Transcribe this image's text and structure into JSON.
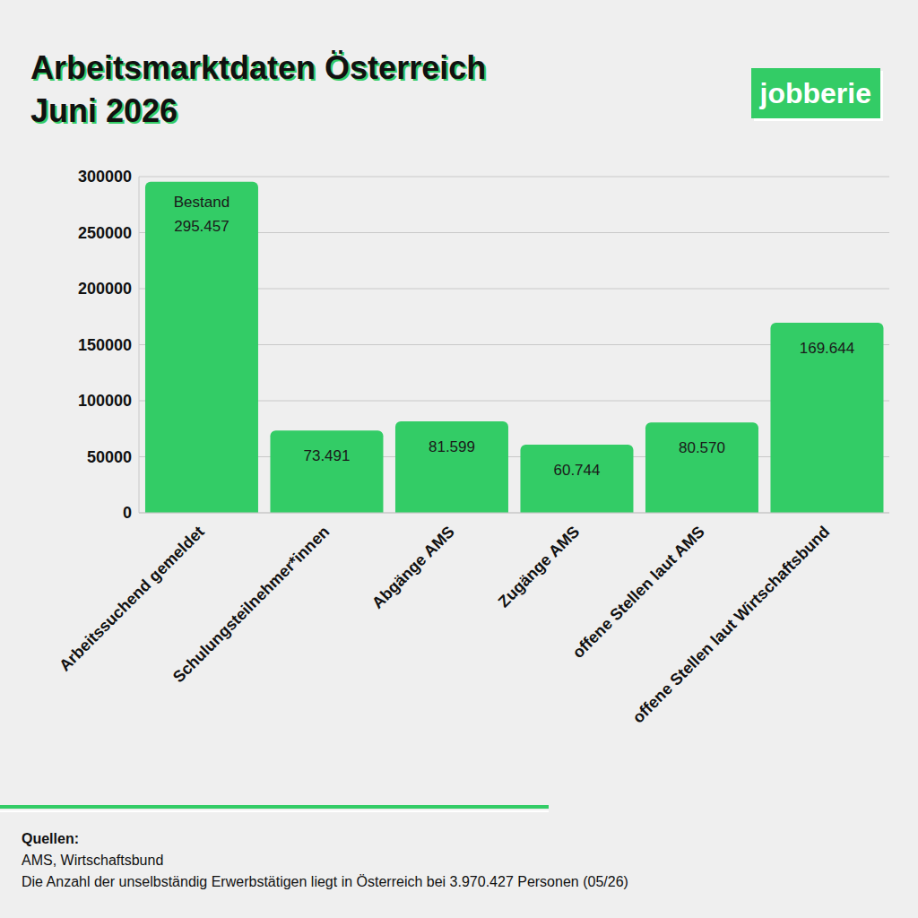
{
  "chart_data": {
    "type": "bar",
    "title": "Arbeitsmarktdaten Österreich",
    "subtitle": "Juni 2026",
    "brand": "jobberie",
    "categories": [
      "Arbeitssuchend gemeldet",
      "Schulungsteilnehmer*innen",
      "Abgänge AMS",
      "Zugänge AMS",
      "offene Stellen laut AMS",
      "offene Stellen laut Wirtschaftsbund"
    ],
    "values": [
      295457,
      73491,
      81599,
      60744,
      80570,
      169644
    ],
    "value_labels": [
      "295.457",
      "73.491",
      "81.599",
      "60.744",
      "80.570",
      "169.644"
    ],
    "annotations": [
      {
        "text": "Bestand",
        "category": "Arbeitssuchend gemeldet"
      }
    ],
    "color": "#33cc66",
    "ylim": [
      0,
      300000
    ],
    "yticks": [
      0,
      50000,
      100000,
      150000,
      200000,
      250000,
      300000
    ],
    "grid": true,
    "data_labels": true,
    "source_title": "Quellen:",
    "source": "AMS, Wirtschaftsbund",
    "note": "Die Anzahl der unselbständig Erwerbstätigen liegt in Österreich bei 3.970.427 Personen (05/26)"
  }
}
